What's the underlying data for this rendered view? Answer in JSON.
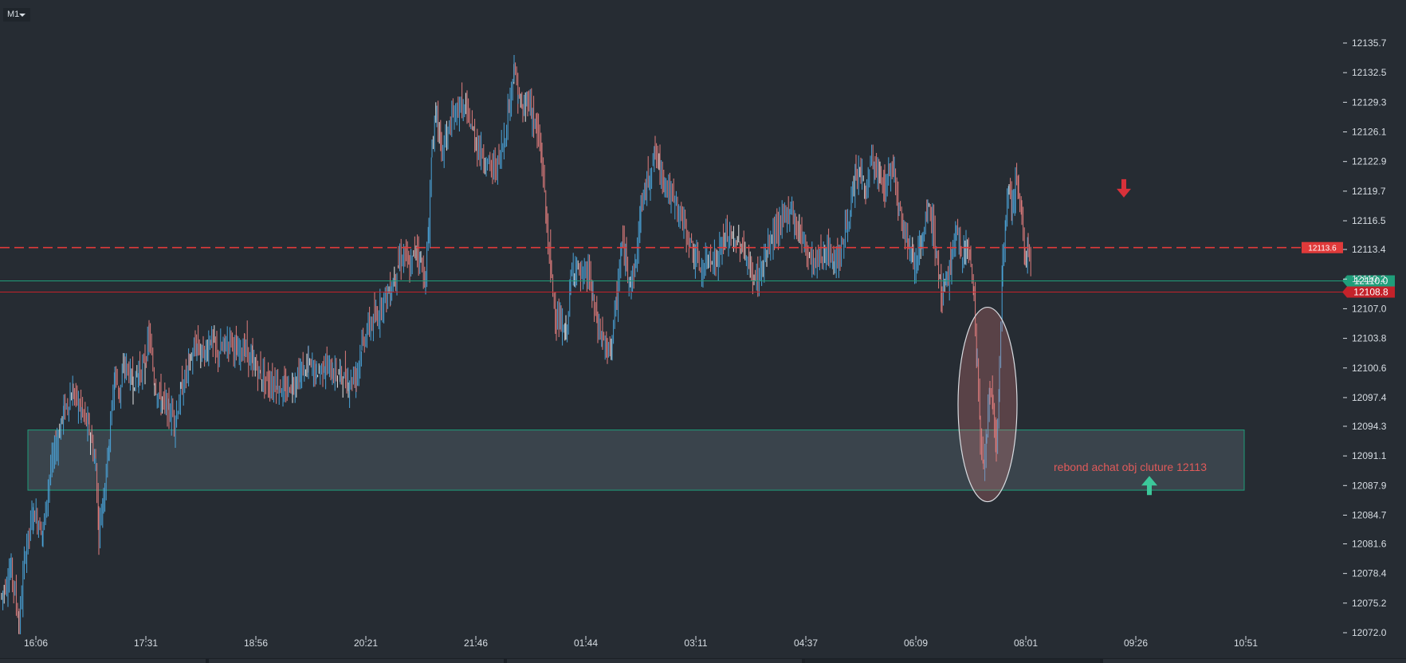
{
  "toolbar": {
    "timeframe": "M1"
  },
  "colors": {
    "background": "#262c33",
    "up_candle": "#4aa3d8",
    "down_candle": "#e07c7c",
    "doji": "#e8e8e8",
    "axis_text": "#d7dde3",
    "resistance": "#e03a3a",
    "support_green": "#1f9e7a",
    "bid_red": "#c4222a",
    "zone_fill": "#4a5a60",
    "zone_border": "#1f9e7a",
    "annotation": "#e05a5a"
  },
  "chart_data": {
    "type": "candlestick",
    "timeframe": "M1",
    "x_ticks": [
      "16:06",
      "17:31",
      "18:56",
      "20:21",
      "21:46",
      "01:44",
      "03:11",
      "04:37",
      "06:09",
      "08:01",
      "09:26",
      "10:51"
    ],
    "y_ticks": [
      12135.7,
      12132.5,
      12129.3,
      12126.1,
      12122.9,
      12119.7,
      12116.5,
      12113.4,
      12110.2,
      12107.0,
      12103.8,
      12100.6,
      12097.4,
      12094.3,
      12091.1,
      12087.9,
      12084.7,
      12081.6,
      12078.4,
      12075.2,
      12072.0
    ],
    "ylim": [
      12072.0,
      12135.7
    ],
    "horizontal_lines": [
      {
        "name": "dashed-resistance",
        "value": 12113.6,
        "style": "dashed",
        "color": "#e03a3a",
        "label": "12113.6"
      },
      {
        "name": "ask-line",
        "value": 12110.0,
        "style": "solid",
        "color": "#1f9e7a",
        "label": "12110.0"
      },
      {
        "name": "bid-line",
        "value": 12108.8,
        "style": "solid",
        "color": "#c4222a",
        "label": "12108.8"
      }
    ],
    "zone": {
      "from_time": "16:06",
      "to_time": "10:51",
      "low": 12087.4,
      "high": 12093.9
    },
    "annotation": {
      "text": "rebond achat obj cluture 12113",
      "time": "09:26",
      "value": 12089.8
    },
    "markers": [
      {
        "type": "sell-arrow",
        "time": "09:26",
        "value": 12119.7,
        "color": "#d8313a"
      },
      {
        "type": "buy-arrow",
        "time": "09:26",
        "value": 12087.9,
        "color": "#3cc79a"
      }
    ],
    "ellipse": {
      "center_time": "09:26",
      "center_value": 12097.0
    },
    "price_path": [
      [
        0,
        12076
      ],
      [
        12,
        12079
      ],
      [
        22,
        12073
      ],
      [
        30,
        12081
      ],
      [
        40,
        12085
      ],
      [
        52,
        12083
      ],
      [
        60,
        12089
      ],
      [
        68,
        12092
      ],
      [
        78,
        12096
      ],
      [
        90,
        12098
      ],
      [
        100,
        12096
      ],
      [
        110,
        12094
      ],
      [
        118,
        12090
      ],
      [
        122,
        12083
      ],
      [
        128,
        12087
      ],
      [
        135,
        12093
      ],
      [
        142,
        12100
      ],
      [
        148,
        12098
      ],
      [
        155,
        12101
      ],
      [
        165,
        12099
      ],
      [
        172,
        12100
      ],
      [
        180,
        12101
      ],
      [
        185,
        12104
      ],
      [
        192,
        12099
      ],
      [
        200,
        12097
      ],
      [
        210,
        12096
      ],
      [
        218,
        12095
      ],
      [
        225,
        12098
      ],
      [
        235,
        12101
      ],
      [
        245,
        12103
      ],
      [
        255,
        12102
      ],
      [
        262,
        12104
      ],
      [
        270,
        12102
      ],
      [
        280,
        12103
      ],
      [
        288,
        12104
      ],
      [
        295,
        12102
      ],
      [
        305,
        12103
      ],
      [
        315,
        12101
      ],
      [
        325,
        12100
      ],
      [
        335,
        12099
      ],
      [
        345,
        12099
      ],
      [
        355,
        12098
      ],
      [
        365,
        12099
      ],
      [
        375,
        12100
      ],
      [
        385,
        12101
      ],
      [
        395,
        12100
      ],
      [
        405,
        12101
      ],
      [
        415,
        12100
      ],
      [
        425,
        12100
      ],
      [
        435,
        12099
      ],
      [
        445,
        12100
      ],
      [
        452,
        12103
      ],
      [
        460,
        12105
      ],
      [
        470,
        12106
      ],
      [
        478,
        12108
      ],
      [
        488,
        12109
      ],
      [
        498,
        12112
      ],
      [
        506,
        12113
      ],
      [
        512,
        12111
      ],
      [
        520,
        12114
      ],
      [
        526,
        12112
      ],
      [
        532,
        12110
      ],
      [
        536,
        12116
      ],
      [
        540,
        12125
      ],
      [
        546,
        12128
      ],
      [
        552,
        12124
      ],
      [
        560,
        12126
      ],
      [
        568,
        12128
      ],
      [
        576,
        12129
      ],
      [
        584,
        12128
      ],
      [
        592,
        12126
      ],
      [
        600,
        12124
      ],
      [
        608,
        12123
      ],
      [
        616,
        12122
      ],
      [
        624,
        12123
      ],
      [
        632,
        12126
      ],
      [
        638,
        12130
      ],
      [
        643,
        12133
      ],
      [
        648,
        12130
      ],
      [
        654,
        12128
      ],
      [
        660,
        12130
      ],
      [
        666,
        12128
      ],
      [
        672,
        12126
      ],
      [
        678,
        12123
      ],
      [
        684,
        12116
      ],
      [
        690,
        12110
      ],
      [
        696,
        12106
      ],
      [
        702,
        12105
      ],
      [
        708,
        12104
      ],
      [
        714,
        12110
      ],
      [
        720,
        12112
      ],
      [
        728,
        12110
      ],
      [
        736,
        12111
      ],
      [
        742,
        12108
      ],
      [
        748,
        12105
      ],
      [
        754,
        12104
      ],
      [
        760,
        12102
      ],
      [
        766,
        12104
      ],
      [
        772,
        12108
      ],
      [
        778,
        12114
      ],
      [
        784,
        12112
      ],
      [
        790,
        12110
      ],
      [
        796,
        12112
      ],
      [
        802,
        12118
      ],
      [
        808,
        12120
      ],
      [
        814,
        12122
      ],
      [
        820,
        12124
      ],
      [
        826,
        12122
      ],
      [
        832,
        12121
      ],
      [
        840,
        12119
      ],
      [
        848,
        12118
      ],
      [
        856,
        12116
      ],
      [
        864,
        12114
      ],
      [
        872,
        12112
      ],
      [
        880,
        12111
      ],
      [
        888,
        12113
      ],
      [
        896,
        12112
      ],
      [
        904,
        12114
      ],
      [
        912,
        12115
      ],
      [
        920,
        12114
      ],
      [
        928,
        12114
      ],
      [
        936,
        12112
      ],
      [
        944,
        12110
      ],
      [
        952,
        12111
      ],
      [
        960,
        12113
      ],
      [
        968,
        12115
      ],
      [
        976,
        12116
      ],
      [
        984,
        12117
      ],
      [
        990,
        12118
      ],
      [
        996,
        12116
      ],
      [
        1004,
        12115
      ],
      [
        1012,
        12113
      ],
      [
        1020,
        12112
      ],
      [
        1028,
        12113
      ],
      [
        1036,
        12113
      ],
      [
        1044,
        12112
      ],
      [
        1052,
        12113
      ],
      [
        1060,
        12116
      ],
      [
        1066,
        12118
      ],
      [
        1072,
        12121
      ],
      [
        1078,
        12122
      ],
      [
        1084,
        12119
      ],
      [
        1090,
        12123
      ],
      [
        1096,
        12122
      ],
      [
        1102,
        12121
      ],
      [
        1108,
        12120
      ],
      [
        1114,
        12122
      ],
      [
        1120,
        12122
      ],
      [
        1126,
        12118
      ],
      [
        1132,
        12116
      ],
      [
        1138,
        12114
      ],
      [
        1144,
        12112
      ],
      [
        1150,
        12113
      ],
      [
        1156,
        12114
      ],
      [
        1162,
        12118
      ],
      [
        1168,
        12116
      ],
      [
        1174,
        12112
      ],
      [
        1180,
        12108
      ],
      [
        1186,
        12110
      ],
      [
        1192,
        12113
      ],
      [
        1198,
        12115
      ],
      [
        1204,
        12113
      ],
      [
        1210,
        12114
      ],
      [
        1216,
        12112
      ],
      [
        1220,
        12108
      ],
      [
        1224,
        12101
      ],
      [
        1228,
        12093
      ],
      [
        1232,
        12090
      ],
      [
        1236,
        12094
      ],
      [
        1240,
        12098
      ],
      [
        1244,
        12096
      ],
      [
        1248,
        12092
      ],
      [
        1252,
        12100
      ],
      [
        1256,
        12112
      ],
      [
        1260,
        12117
      ],
      [
        1264,
        12120
      ],
      [
        1268,
        12118
      ],
      [
        1272,
        12121
      ],
      [
        1276,
        12119
      ],
      [
        1280,
        12117
      ],
      [
        1284,
        12112
      ],
      [
        1288,
        12114
      ],
      [
        1292,
        12112
      ]
    ]
  }
}
